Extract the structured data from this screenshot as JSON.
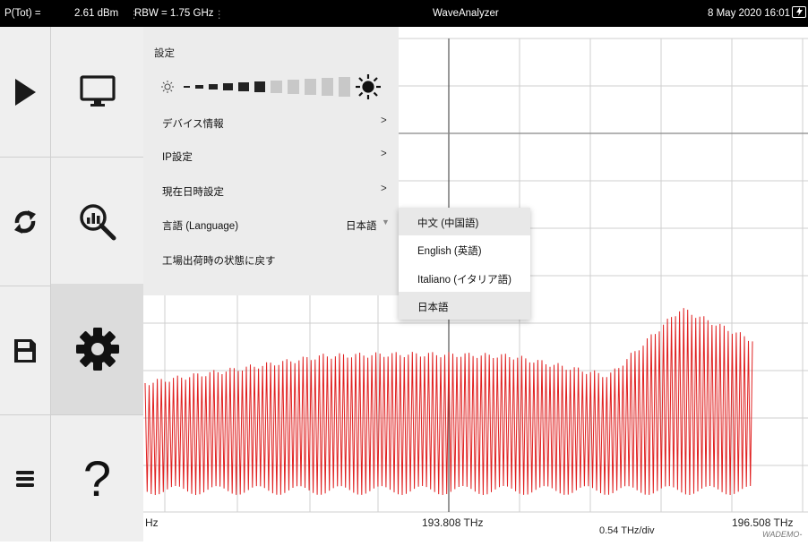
{
  "topbar": {
    "ptot_label": "P(Tot) =",
    "ptot_value": "2.61 dBm",
    "rbw": "RBW = 1.75 GHz",
    "app_title": "WaveAnalyzer",
    "datetime": "8 May 2020 16:01",
    "battery_icon": "battery-charging-icon"
  },
  "nav": {
    "items": [
      {
        "icon": "play-icon",
        "name": "run"
      },
      {
        "icon": "monitor-icon",
        "name": "display"
      },
      {
        "icon": "refresh-icon",
        "name": "reset"
      },
      {
        "icon": "search-chart-icon",
        "name": "analysis"
      },
      {
        "icon": "save-icon",
        "name": "save"
      },
      {
        "icon": "gear-icon",
        "name": "settings",
        "selected": true
      },
      {
        "icon": "menu-icon",
        "name": "menu"
      },
      {
        "icon": "help-icon",
        "name": "help",
        "text": "?"
      }
    ]
  },
  "settings": {
    "title": "設定",
    "brightness_icons": [
      "sun-dim-icon",
      "sun-bright-icon"
    ],
    "brightness_level": 0.45,
    "rows": [
      {
        "label": "デバイス情報",
        "chevron": ">"
      },
      {
        "label": "IP設定",
        "chevron": ">"
      },
      {
        "label": "現在日時設定",
        "chevron": ">"
      },
      {
        "label": "言語 (Language)",
        "value": "日本語"
      },
      {
        "label": "工場出荷時の状態に戻す"
      }
    ]
  },
  "language_dropdown": {
    "options": [
      "中文 (中国語)",
      "English (英語)",
      "Italiano (イタリア語)",
      "日本語"
    ],
    "highlighted": [
      0,
      3
    ]
  },
  "plot": {
    "x_left": "Hz",
    "x_center": "193.808 THz",
    "x_right": "196.508 THz",
    "x_scale": "0.54 THz/div",
    "watermark": "WADEMO-",
    "trace_color": "#e02020",
    "grid_color": "#cfcfcf"
  }
}
